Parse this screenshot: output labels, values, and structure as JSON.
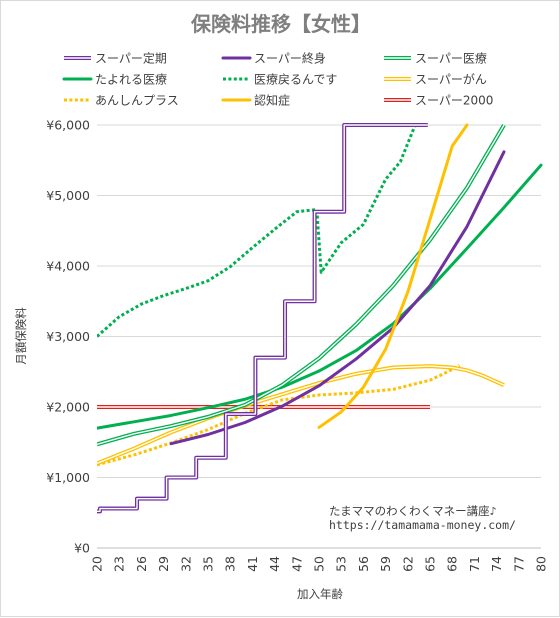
{
  "chart_data": {
    "type": "line",
    "title": "保険料推移【女性】",
    "xlabel": "加入年齢",
    "ylabel": "月額保険料",
    "ylim": [
      0,
      6000
    ],
    "yticks": [
      0,
      1000,
      2000,
      3000,
      4000,
      5000,
      6000
    ],
    "ytick_labels": [
      "¥0",
      "¥1,000",
      "¥2,000",
      "¥3,000",
      "¥4,000",
      "¥5,000",
      "¥6,000"
    ],
    "xlim": [
      20,
      80
    ],
    "xticks": [
      20,
      23,
      26,
      29,
      32,
      35,
      38,
      41,
      44,
      47,
      50,
      53,
      56,
      59,
      62,
      65,
      68,
      71,
      74,
      77,
      80
    ],
    "grid": true,
    "legend_position": "top",
    "watermark_lines": [
      "たまママのわくわくマネー講座♪",
      "https://tamamama-money.com/"
    ],
    "series": [
      {
        "name": "スーパー定期",
        "color": "#7030a0",
        "style": "double",
        "step": true,
        "x": [
          20,
          25,
          29,
          33,
          37,
          41,
          45,
          49,
          53,
          57,
          61,
          64.7
        ],
        "values": [
          520,
          560,
          700,
          1000,
          1280,
          1900,
          2700,
          3500,
          4770,
          6000,
          6000,
          6000
        ]
      },
      {
        "name": "スーパー終身",
        "color": "#7030a0",
        "style": "solid",
        "x": [
          30,
          35,
          40,
          45,
          50,
          55,
          60,
          65,
          70,
          75
        ],
        "values": [
          1480,
          1610,
          1780,
          2010,
          2300,
          2680,
          3120,
          3720,
          4560,
          5620
        ]
      },
      {
        "name": "スーパー医療",
        "color": "#00b050",
        "style": "double",
        "x": [
          20,
          25,
          30,
          35,
          40,
          45,
          50,
          55,
          60,
          65,
          70,
          75
        ],
        "values": [
          1470,
          1620,
          1730,
          1860,
          2030,
          2310,
          2690,
          3170,
          3720,
          4370,
          5110,
          6000
        ]
      },
      {
        "name": "たよれる医療",
        "color": "#00b050",
        "style": "solid",
        "x": [
          20,
          25,
          30,
          35,
          40,
          45,
          50,
          55,
          60,
          65,
          70,
          75,
          80
        ],
        "values": [
          1700,
          1790,
          1880,
          1990,
          2110,
          2280,
          2510,
          2800,
          3180,
          3680,
          4250,
          4830,
          5430
        ]
      },
      {
        "name": "医療戻るんです",
        "color": "#00b050",
        "style": "dotted",
        "x": [
          20,
          23,
          26,
          29,
          32,
          35,
          38,
          41,
          44,
          47,
          49.7,
          50.3,
          53,
          56,
          59,
          61,
          63
        ],
        "values": [
          3000,
          3280,
          3460,
          3580,
          3680,
          3790,
          3990,
          4260,
          4520,
          4770,
          4800,
          3910,
          4330,
          4590,
          5230,
          5480,
          6000
        ]
      },
      {
        "name": "スーパーがん",
        "color": "#ffc000",
        "style": "double",
        "x": [
          20,
          25,
          30,
          35,
          40,
          45,
          50,
          55,
          60,
          65,
          68,
          70,
          72,
          75
        ],
        "values": [
          1200,
          1410,
          1640,
          1840,
          2020,
          2180,
          2340,
          2470,
          2560,
          2580,
          2560,
          2520,
          2450,
          2310
        ]
      },
      {
        "name": "あんしんプラス",
        "color": "#ffc000",
        "style": "dotted",
        "x": [
          20,
          25,
          30,
          35,
          40,
          45,
          50,
          55,
          60,
          65,
          67,
          69
        ],
        "values": [
          1180,
          1320,
          1490,
          1680,
          1910,
          2100,
          2170,
          2200,
          2250,
          2380,
          2480,
          2590
        ]
      },
      {
        "name": "認知症",
        "color": "#ffc000",
        "style": "solid",
        "x": [
          50,
          53,
          56,
          59,
          62,
          65,
          68,
          70
        ],
        "values": [
          1710,
          1930,
          2280,
          2820,
          3630,
          4660,
          5700,
          6000
        ]
      },
      {
        "name": "スーパー2000",
        "color": "#e0201b",
        "style": "double",
        "x": [
          20,
          65
        ],
        "values": [
          2000,
          2000
        ]
      }
    ]
  }
}
